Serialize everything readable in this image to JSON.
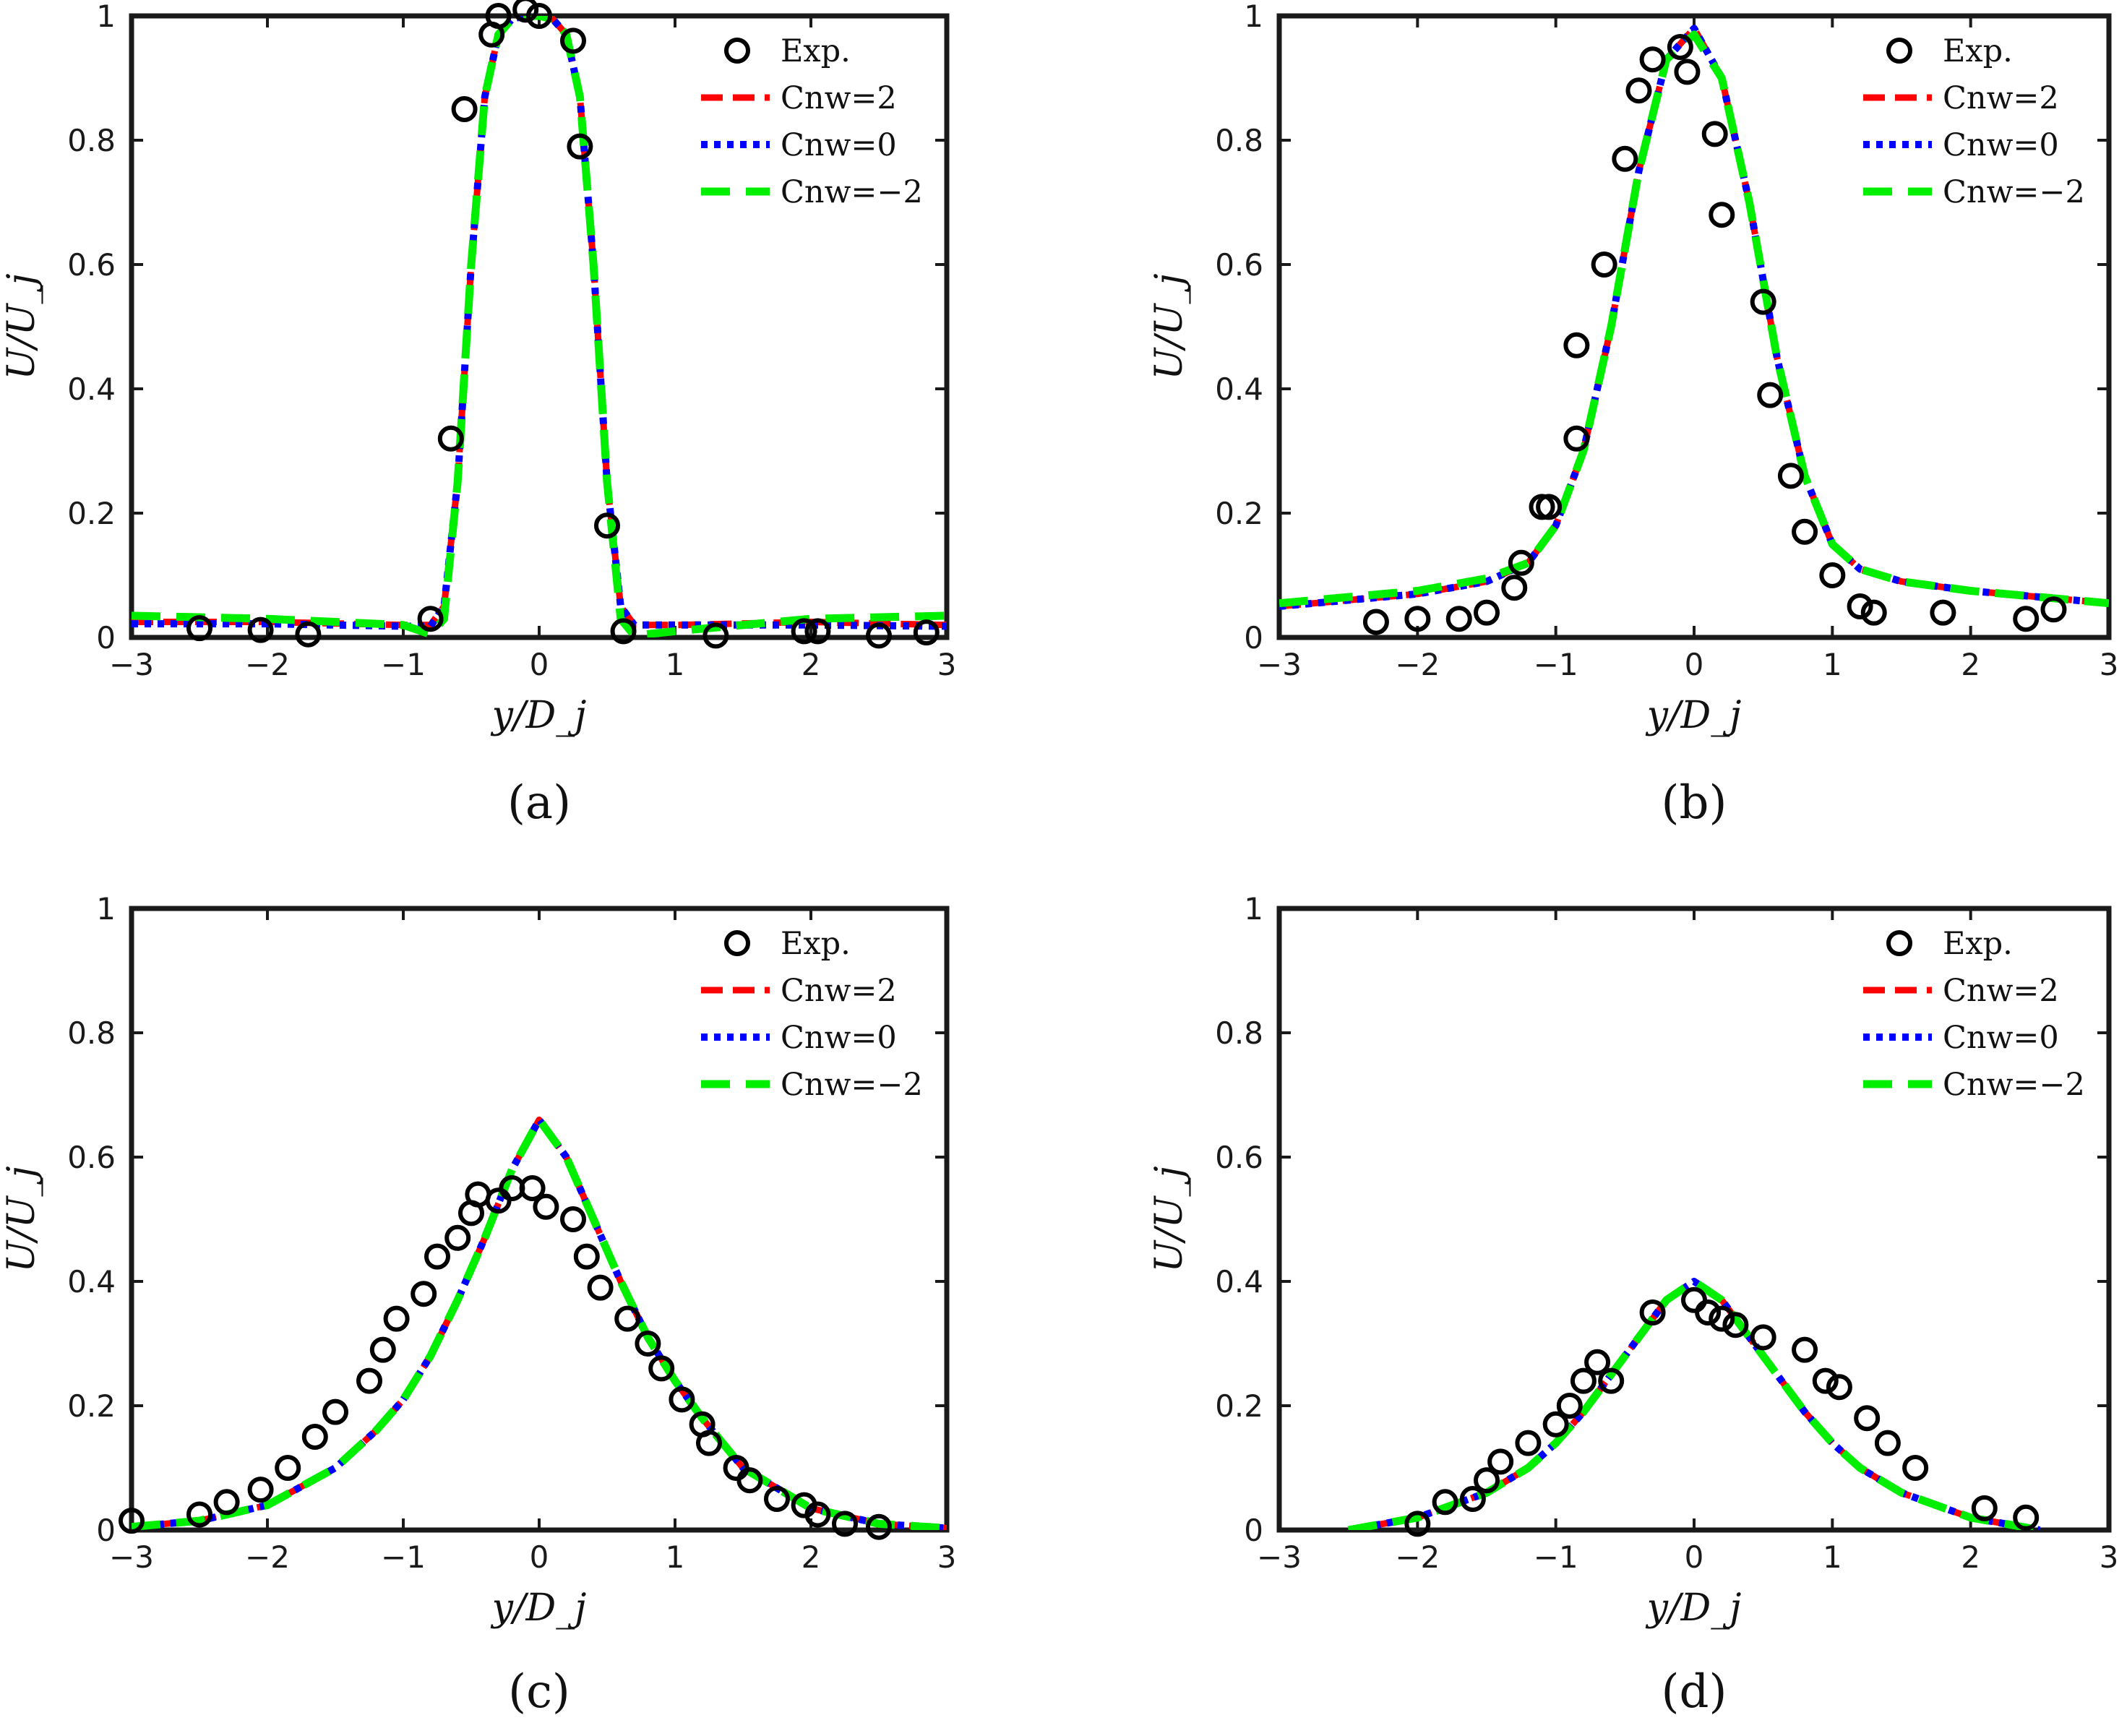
{
  "colors": {
    "exp": "#000000",
    "cnw2": "#ff0000",
    "cnw0": "#0000ff",
    "cnwm2": "#00ee00",
    "axes": "#1a1a1a"
  },
  "legend": [
    "Exp.",
    "Cnw=2",
    "Cnw=0",
    "Cnw=−2"
  ],
  "chart_data": [
    {
      "type": "line",
      "caption": "(a)",
      "xlabel": "y/D_j",
      "ylabel": "U/U_j",
      "xlim": [
        -3,
        3
      ],
      "ylim": [
        0,
        1
      ],
      "xticks": [
        -3,
        -2,
        -1,
        0,
        1,
        2,
        3
      ],
      "xtick_labels": [
        "−3",
        "−2",
        "−1",
        "0",
        "1",
        "2",
        "3"
      ],
      "yticks": [
        0,
        0.2,
        0.4,
        0.6,
        0.8,
        1
      ],
      "ytick_labels": [
        "0",
        "0.2",
        "0.4",
        "0.6",
        "0.8",
        "1"
      ],
      "exp": {
        "x": [
          -2.5,
          -2.05,
          -1.7,
          -0.8,
          -0.65,
          -0.55,
          -0.35,
          -0.3,
          -0.1,
          0.0,
          0.25,
          0.3,
          0.5,
          0.62,
          1.3,
          1.95,
          2.05,
          2.5,
          2.85
        ],
        "y": [
          0.015,
          0.012,
          0.005,
          0.03,
          0.32,
          0.85,
          0.97,
          1.0,
          1.01,
          1.0,
          0.96,
          0.79,
          0.18,
          0.01,
          0.003,
          0.01,
          0.01,
          0.003,
          0.008
        ]
      },
      "series": [
        {
          "name": "Cnw=2",
          "x": [
            -3,
            -2,
            -1,
            -0.8,
            -0.7,
            -0.6,
            -0.5,
            -0.4,
            -0.3,
            -0.2,
            -0.1,
            0,
            0.1,
            0.2,
            0.3,
            0.4,
            0.5,
            0.6,
            0.7,
            0.8,
            1,
            2,
            3
          ],
          "y": [
            0.025,
            0.025,
            0.02,
            0.02,
            0.05,
            0.25,
            0.6,
            0.87,
            0.97,
            0.995,
            1.0,
            1.0,
            0.995,
            0.97,
            0.87,
            0.6,
            0.25,
            0.05,
            0.02,
            0.02,
            0.02,
            0.025,
            0.02
          ]
        },
        {
          "name": "Cnw=0",
          "x": [
            -3,
            -2,
            -1,
            -0.8,
            -0.7,
            -0.6,
            -0.5,
            -0.4,
            -0.3,
            -0.2,
            -0.1,
            0,
            0.1,
            0.2,
            0.3,
            0.4,
            0.5,
            0.6,
            0.7,
            0.8,
            1,
            2,
            3
          ],
          "y": [
            0.022,
            0.022,
            0.018,
            0.018,
            0.05,
            0.25,
            0.6,
            0.87,
            0.97,
            0.995,
            1.0,
            1.0,
            0.995,
            0.97,
            0.87,
            0.6,
            0.25,
            0.05,
            0.02,
            0.02,
            0.02,
            0.02,
            0.018
          ]
        },
        {
          "name": "Cnw=−2",
          "x": [
            -3,
            -2,
            -1,
            -0.8,
            -0.7,
            -0.6,
            -0.5,
            -0.4,
            -0.3,
            -0.2,
            -0.1,
            0,
            0.1,
            0.2,
            0.3,
            0.4,
            0.5,
            0.6,
            0.7,
            1,
            2,
            3
          ],
          "y": [
            0.035,
            0.03,
            0.02,
            0.005,
            0.03,
            0.25,
            0.6,
            0.87,
            0.97,
            0.995,
            1.0,
            1.0,
            0.995,
            0.97,
            0.87,
            0.6,
            0.25,
            0.03,
            0.003,
            0.01,
            0.03,
            0.035
          ]
        }
      ]
    },
    {
      "type": "line",
      "caption": "(b)",
      "xlabel": "y/D_j",
      "ylabel": "U/U_j",
      "xlim": [
        -3,
        3
      ],
      "ylim": [
        0,
        1
      ],
      "xticks": [
        -3,
        -2,
        -1,
        0,
        1,
        2,
        3
      ],
      "xtick_labels": [
        "−3",
        "−2",
        "−1",
        "0",
        "1",
        "2",
        "3"
      ],
      "yticks": [
        0,
        0.2,
        0.4,
        0.6,
        0.8,
        1
      ],
      "ytick_labels": [
        "0",
        "0.2",
        "0.4",
        "0.6",
        "0.8",
        "1"
      ],
      "exp": {
        "x": [
          -2.3,
          -2.0,
          -1.7,
          -1.5,
          -1.3,
          -1.25,
          -1.1,
          -1.05,
          -0.85,
          -0.85,
          -0.65,
          -0.5,
          -0.4,
          -0.3,
          -0.1,
          -0.05,
          0.15,
          0.2,
          0.5,
          0.55,
          0.7,
          0.8,
          1.0,
          1.2,
          1.3,
          1.8,
          2.4,
          2.6
        ],
        "y": [
          0.025,
          0.03,
          0.03,
          0.04,
          0.08,
          0.12,
          0.21,
          0.21,
          0.32,
          0.47,
          0.6,
          0.77,
          0.88,
          0.93,
          0.95,
          0.91,
          0.81,
          0.68,
          0.54,
          0.39,
          0.26,
          0.17,
          0.1,
          0.05,
          0.04,
          0.04,
          0.03,
          0.045
        ]
      },
      "series": [
        {
          "name": "Cnw=2",
          "x": [
            -3,
            -2.5,
            -2,
            -1.5,
            -1.2,
            -1.0,
            -0.8,
            -0.6,
            -0.4,
            -0.2,
            0,
            0.2,
            0.4,
            0.6,
            0.8,
            1.0,
            1.2,
            1.5,
            2,
            2.5,
            3
          ],
          "y": [
            0.05,
            0.06,
            0.07,
            0.09,
            0.12,
            0.18,
            0.3,
            0.5,
            0.75,
            0.93,
            0.98,
            0.9,
            0.7,
            0.45,
            0.26,
            0.15,
            0.11,
            0.09,
            0.075,
            0.065,
            0.055
          ]
        },
        {
          "name": "Cnw=0",
          "x": [
            -3,
            -2.5,
            -2,
            -1.5,
            -1.2,
            -1.0,
            -0.8,
            -0.6,
            -0.4,
            -0.2,
            0,
            0.2,
            0.4,
            0.6,
            0.8,
            1.0,
            1.2,
            1.5,
            2,
            2.5,
            3
          ],
          "y": [
            0.05,
            0.06,
            0.07,
            0.09,
            0.12,
            0.18,
            0.3,
            0.5,
            0.75,
            0.93,
            0.98,
            0.9,
            0.7,
            0.45,
            0.26,
            0.15,
            0.11,
            0.09,
            0.075,
            0.065,
            0.055
          ]
        },
        {
          "name": "Cnw=−2",
          "x": [
            -3,
            -2.5,
            -2,
            -1.5,
            -1.2,
            -1.0,
            -0.8,
            -0.6,
            -0.4,
            -0.2,
            0,
            0.2,
            0.4,
            0.6,
            0.8,
            1.0,
            1.2,
            1.5,
            2,
            2.5,
            3
          ],
          "y": [
            0.055,
            0.065,
            0.075,
            0.095,
            0.12,
            0.18,
            0.3,
            0.5,
            0.75,
            0.93,
            0.97,
            0.9,
            0.7,
            0.45,
            0.26,
            0.15,
            0.11,
            0.09,
            0.075,
            0.065,
            0.055
          ]
        }
      ]
    },
    {
      "type": "line",
      "caption": "(c)",
      "xlabel": "y/D_j",
      "ylabel": "U/U_j",
      "xlim": [
        -3,
        3
      ],
      "ylim": [
        0,
        1
      ],
      "xticks": [
        -3,
        -2,
        -1,
        0,
        1,
        2,
        3
      ],
      "xtick_labels": [
        "−3",
        "−2",
        "−1",
        "0",
        "1",
        "2",
        "3"
      ],
      "yticks": [
        0,
        0.2,
        0.4,
        0.6,
        0.8,
        1
      ],
      "ytick_labels": [
        "0",
        "0.2",
        "0.4",
        "0.6",
        "0.8",
        "1"
      ],
      "exp": {
        "x": [
          -3.0,
          -2.5,
          -2.3,
          -2.05,
          -1.85,
          -1.65,
          -1.5,
          -1.25,
          -1.15,
          -1.05,
          -0.85,
          -0.75,
          -0.6,
          -0.5,
          -0.45,
          -0.3,
          -0.2,
          -0.05,
          0.05,
          0.25,
          0.35,
          0.45,
          0.65,
          0.8,
          0.9,
          1.05,
          1.2,
          1.25,
          1.45,
          1.55,
          1.75,
          1.95,
          2.05,
          2.25,
          2.5
        ],
        "y": [
          0.015,
          0.025,
          0.045,
          0.065,
          0.1,
          0.15,
          0.19,
          0.24,
          0.29,
          0.34,
          0.38,
          0.44,
          0.47,
          0.51,
          0.54,
          0.53,
          0.55,
          0.55,
          0.52,
          0.5,
          0.44,
          0.39,
          0.34,
          0.3,
          0.26,
          0.21,
          0.17,
          0.14,
          0.1,
          0.08,
          0.05,
          0.04,
          0.025,
          0.01,
          0.005
        ]
      },
      "series": [
        {
          "name": "Cnw=2",
          "x": [
            -3,
            -2.5,
            -2,
            -1.5,
            -1.2,
            -1.0,
            -0.8,
            -0.6,
            -0.4,
            -0.2,
            0,
            0.2,
            0.4,
            0.6,
            0.8,
            1.0,
            1.2,
            1.5,
            2,
            2.5,
            3
          ],
          "y": [
            0.005,
            0.015,
            0.04,
            0.1,
            0.16,
            0.21,
            0.28,
            0.37,
            0.47,
            0.58,
            0.66,
            0.6,
            0.5,
            0.4,
            0.31,
            0.24,
            0.18,
            0.1,
            0.035,
            0.01,
            0.003
          ]
        },
        {
          "name": "Cnw=0",
          "x": [
            -3,
            -2.5,
            -2,
            -1.5,
            -1.2,
            -1.0,
            -0.8,
            -0.6,
            -0.4,
            -0.2,
            0,
            0.2,
            0.4,
            0.6,
            0.8,
            1.0,
            1.2,
            1.5,
            2,
            2.5,
            3
          ],
          "y": [
            0.005,
            0.015,
            0.04,
            0.1,
            0.16,
            0.21,
            0.28,
            0.37,
            0.47,
            0.58,
            0.66,
            0.6,
            0.5,
            0.4,
            0.31,
            0.24,
            0.18,
            0.1,
            0.035,
            0.01,
            0.003
          ]
        },
        {
          "name": "Cnw=−2",
          "x": [
            -3,
            -2.5,
            -2,
            -1.5,
            -1.2,
            -1.0,
            -0.8,
            -0.6,
            -0.4,
            -0.2,
            0,
            0.2,
            0.4,
            0.6,
            0.8,
            1.0,
            1.2,
            1.5,
            2,
            2.5,
            3
          ],
          "y": [
            0.005,
            0.015,
            0.04,
            0.1,
            0.16,
            0.21,
            0.28,
            0.37,
            0.47,
            0.58,
            0.66,
            0.6,
            0.5,
            0.4,
            0.31,
            0.24,
            0.18,
            0.1,
            0.035,
            0.01,
            0.003
          ]
        }
      ]
    },
    {
      "type": "line",
      "caption": "(d)",
      "xlabel": "y/D_j",
      "ylabel": "U/U_j",
      "xlim": [
        -3,
        3
      ],
      "ylim": [
        0,
        1
      ],
      "xticks": [
        -3,
        -2,
        -1,
        0,
        1,
        2,
        3
      ],
      "xtick_labels": [
        "−3",
        "−2",
        "−1",
        "0",
        "1",
        "2",
        "3"
      ],
      "yticks": [
        0,
        0.2,
        0.4,
        0.6,
        0.8,
        1
      ],
      "ytick_labels": [
        "0",
        "0.2",
        "0.4",
        "0.6",
        "0.8",
        "1"
      ],
      "exp": {
        "x": [
          -2.0,
          -1.8,
          -1.6,
          -1.5,
          -1.4,
          -1.2,
          -1.0,
          -0.9,
          -0.8,
          -0.7,
          -0.6,
          -0.3,
          0.0,
          0.1,
          0.2,
          0.3,
          0.5,
          0.8,
          0.95,
          1.05,
          1.25,
          1.4,
          1.6,
          2.1,
          2.4
        ],
        "y": [
          0.01,
          0.045,
          0.05,
          0.08,
          0.11,
          0.14,
          0.17,
          0.2,
          0.24,
          0.27,
          0.24,
          0.35,
          0.37,
          0.35,
          0.34,
          0.33,
          0.31,
          0.29,
          0.24,
          0.23,
          0.18,
          0.14,
          0.1,
          0.035,
          0.02
        ]
      },
      "series": [
        {
          "name": "Cnw=2",
          "x": [
            -2.5,
            -2,
            -1.5,
            -1.2,
            -1.0,
            -0.8,
            -0.6,
            -0.4,
            -0.2,
            0,
            0.2,
            0.4,
            0.6,
            0.8,
            1.0,
            1.2,
            1.5,
            2,
            2.5
          ],
          "y": [
            0.0,
            0.02,
            0.06,
            0.1,
            0.14,
            0.19,
            0.25,
            0.31,
            0.37,
            0.4,
            0.37,
            0.31,
            0.25,
            0.19,
            0.14,
            0.1,
            0.06,
            0.02,
            0.0
          ]
        },
        {
          "name": "Cnw=0",
          "x": [
            -2.5,
            -2,
            -1.5,
            -1.2,
            -1.0,
            -0.8,
            -0.6,
            -0.4,
            -0.2,
            0,
            0.2,
            0.4,
            0.6,
            0.8,
            1.0,
            1.2,
            1.5,
            2,
            2.5
          ],
          "y": [
            0.0,
            0.02,
            0.06,
            0.1,
            0.14,
            0.19,
            0.25,
            0.31,
            0.37,
            0.4,
            0.37,
            0.31,
            0.25,
            0.19,
            0.14,
            0.1,
            0.06,
            0.02,
            0.0
          ]
        },
        {
          "name": "Cnw=−2",
          "x": [
            -2.5,
            -2,
            -1.5,
            -1.2,
            -1.0,
            -0.8,
            -0.6,
            -0.4,
            -0.2,
            0,
            0.2,
            0.4,
            0.6,
            0.8,
            1.0,
            1.2,
            1.5,
            2,
            2.5
          ],
          "y": [
            0.0,
            0.02,
            0.06,
            0.1,
            0.14,
            0.19,
            0.25,
            0.31,
            0.37,
            0.4,
            0.37,
            0.31,
            0.25,
            0.19,
            0.14,
            0.1,
            0.06,
            0.02,
            0.0
          ]
        }
      ]
    }
  ]
}
